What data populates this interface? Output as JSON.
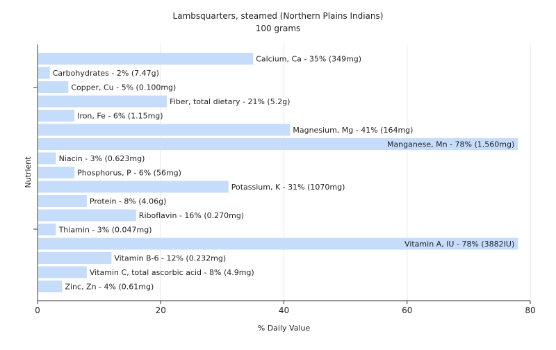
{
  "chart_data": {
    "type": "bar",
    "orientation": "horizontal",
    "title": "Lambsquarters, steamed (Northern Plains Indians)",
    "subtitle": "100 grams",
    "xlabel": "% Daily Value",
    "ylabel": "Nutrient",
    "xlim": [
      0,
      80
    ],
    "x_ticks": [
      0,
      20,
      40,
      60,
      80
    ],
    "grid": true,
    "bar_color": "#c6dcfb",
    "categories": [
      "Calcium, Ca",
      "Carbohydrates",
      "Copper, Cu",
      "Fiber, total dietary",
      "Iron, Fe",
      "Magnesium, Mg",
      "Manganese, Mn",
      "Niacin",
      "Phosphorus, P",
      "Potassium, K",
      "Protein",
      "Riboflavin",
      "Thiamin",
      "Vitamin A, IU",
      "Vitamin B-6",
      "Vitamin C, total ascorbic acid",
      "Zinc, Zn"
    ],
    "values": [
      35,
      2,
      5,
      21,
      6,
      41,
      78,
      3,
      6,
      31,
      8,
      16,
      3,
      78,
      12,
      8,
      4
    ],
    "labels": [
      "Calcium, Ca - 35% (349mg)",
      "Carbohydrates - 2% (7.47g)",
      "Copper, Cu - 5% (0.100mg)",
      "Fiber, total dietary - 21% (5.2g)",
      "Iron, Fe - 6% (1.15mg)",
      "Magnesium, Mg - 41% (164mg)",
      "Manganese, Mn - 78% (1.560mg)",
      "Niacin - 3% (0.623mg)",
      "Phosphorus, P - 6% (56mg)",
      "Potassium, K - 31% (1070mg)",
      "Protein - 8% (4.06g)",
      "Riboflavin - 16% (0.270mg)",
      "Thiamin - 3% (0.047mg)",
      "Vitamin A, IU - 78% (3882IU)",
      "Vitamin B-6 - 12% (0.232mg)",
      "Vitamin C, total ascorbic acid - 8% (4.9mg)",
      "Zinc, Zn - 4% (0.61mg)"
    ]
  }
}
